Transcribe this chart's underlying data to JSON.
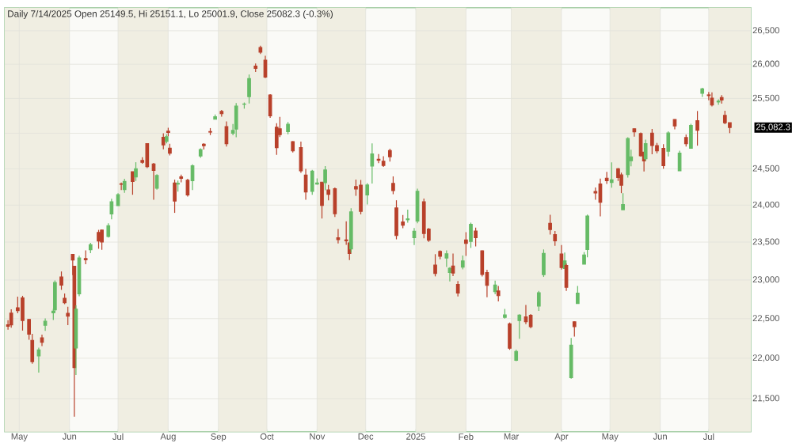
{
  "chart_data": {
    "type": "candlestick",
    "title": "Daily 7/14/2025 Open 25149.5, Hi 25151.1, Lo 25001.9, Close 25082.3 (-0.3%)",
    "log": true,
    "grid": true,
    "xlim": [
      "2024-04-22",
      "2025-07-27"
    ],
    "xticks": [
      {
        "value": "2024-05-01",
        "label": "May"
      },
      {
        "value": "2024-06-01",
        "label": "Jun"
      },
      {
        "value": "2024-07-01",
        "label": "Jul"
      },
      {
        "value": "2024-08-01",
        "label": "Aug"
      },
      {
        "value": "2024-09-01",
        "label": "Sep"
      },
      {
        "value": "2024-10-01",
        "label": "Oct"
      },
      {
        "value": "2024-11-01",
        "label": "Nov"
      },
      {
        "value": "2024-12-01",
        "label": "Dec"
      },
      {
        "value": "2025-01-01",
        "label": "2025"
      },
      {
        "value": "2025-02-01",
        "label": "Feb"
      },
      {
        "value": "2025-03-01",
        "label": "Mar"
      },
      {
        "value": "2025-04-01",
        "label": "Apr"
      },
      {
        "value": "2025-05-01",
        "label": "May"
      },
      {
        "value": "2025-06-01",
        "label": "Jun"
      },
      {
        "value": "2025-07-01",
        "label": "Jul"
      }
    ],
    "ylim": [
      21100,
      26850
    ],
    "yticks": [
      {
        "value": 21500,
        "label": "21,500"
      },
      {
        "value": 22000,
        "label": "22,000"
      },
      {
        "value": 22500,
        "label": "22,500"
      },
      {
        "value": 23000,
        "label": "23,000"
      },
      {
        "value": 23500,
        "label": "23,500"
      },
      {
        "value": 24000,
        "label": "24,000"
      },
      {
        "value": 24500,
        "label": "24,500"
      },
      {
        "value": 25000,
        "label": null
      },
      {
        "value": 25500,
        "label": "25,500"
      },
      {
        "value": 26000,
        "label": "26,000"
      },
      {
        "value": 26500,
        "label": "26,500"
      }
    ],
    "bands": [
      {
        "axis": "x",
        "from": "2024-04-22",
        "to": "2024-06-01",
        "color": "#f0eee2"
      },
      {
        "axis": "x",
        "from": "2024-07-01",
        "to": "2024-08-01",
        "color": "#f0eee2"
      },
      {
        "axis": "x",
        "from": "2024-09-01",
        "to": "2024-10-01",
        "color": "#f0eee2"
      },
      {
        "axis": "x",
        "from": "2024-11-01",
        "to": "2024-12-01",
        "color": "#f0eee2"
      },
      {
        "axis": "x",
        "from": "2025-01-01",
        "to": "2025-02-01",
        "color": "#f0eee2"
      },
      {
        "axis": "x",
        "from": "2025-03-01",
        "to": "2025-04-01",
        "color": "#f0eee2"
      },
      {
        "axis": "x",
        "from": "2025-05-01",
        "to": "2025-06-01",
        "color": "#f0eee2"
      },
      {
        "axis": "x",
        "from": "2025-07-01",
        "to": "2025-07-27",
        "color": "#f0eee2"
      }
    ],
    "annotations": [
      "25,082.3"
    ],
    "x": [
      "2024-04-24",
      "2024-04-26",
      "2024-04-30",
      "2024-05-03",
      "2024-05-07",
      "2024-05-09",
      "2024-05-13",
      "2024-05-15",
      "2024-05-17",
      "2024-05-22",
      "2024-05-23",
      "2024-05-27",
      "2024-05-29",
      "2024-05-31",
      "2024-06-03",
      "2024-06-04",
      "2024-06-05",
      "2024-06-07",
      "2024-06-11",
      "2024-06-14",
      "2024-06-19",
      "2024-06-21",
      "2024-06-25",
      "2024-06-27",
      "2024-07-01",
      "2024-07-03",
      "2024-07-05",
      "2024-07-10",
      "2024-07-12",
      "2024-07-16",
      "2024-07-19",
      "2024-07-23",
      "2024-07-25",
      "2024-07-29",
      "2024-07-31",
      "2024-08-01",
      "2024-08-02",
      "2024-08-05",
      "2024-08-07",
      "2024-08-09",
      "2024-08-13",
      "2024-08-16",
      "2024-08-21",
      "2024-08-23",
      "2024-08-27",
      "2024-08-30",
      "2024-09-03",
      "2024-09-06",
      "2024-09-10",
      "2024-09-12",
      "2024-09-17",
      "2024-09-20",
      "2024-09-24",
      "2024-09-27",
      "2024-09-30",
      "2024-10-03",
      "2024-10-07",
      "2024-10-09",
      "2024-10-14",
      "2024-10-17",
      "2024-10-22",
      "2024-10-25",
      "2024-10-29",
      "2024-11-01",
      "2024-11-04",
      "2024-11-06",
      "2024-11-08",
      "2024-11-12",
      "2024-11-14",
      "2024-11-19",
      "2024-11-21",
      "2024-11-22",
      "2024-11-25",
      "2024-11-28",
      "2024-12-02",
      "2024-12-05",
      "2024-12-09",
      "2024-12-12",
      "2024-12-16",
      "2024-12-18",
      "2024-12-20",
      "2024-12-24",
      "2024-12-27",
      "2024-12-31",
      "2025-01-02",
      "2025-01-06",
      "2025-01-09",
      "2025-01-13",
      "2025-01-16",
      "2025-01-20",
      "2025-01-22",
      "2025-01-24",
      "2025-01-27",
      "2025-01-30",
      "2025-02-01",
      "2025-02-04",
      "2025-02-07",
      "2025-02-11",
      "2025-02-14",
      "2025-02-19",
      "2025-02-21",
      "2025-02-25",
      "2025-02-28",
      "2025-03-04",
      "2025-03-06",
      "2025-03-10",
      "2025-03-13",
      "2025-03-18",
      "2025-03-21",
      "2025-03-25",
      "2025-03-28",
      "2025-04-01",
      "2025-04-03",
      "2025-04-04",
      "2025-04-07",
      "2025-04-09",
      "2025-04-11",
      "2025-04-15",
      "2025-04-17",
      "2025-04-22",
      "2025-04-25",
      "2025-04-29",
      "2025-05-02",
      "2025-05-06",
      "2025-05-08",
      "2025-05-09",
      "2025-05-12",
      "2025-05-14",
      "2025-05-16",
      "2025-05-20",
      "2025-05-22",
      "2025-05-23",
      "2025-05-27",
      "2025-05-30",
      "2025-06-03",
      "2025-06-06",
      "2025-06-10",
      "2025-06-13",
      "2025-06-17",
      "2025-06-20",
      "2025-06-24",
      "2025-06-27",
      "2025-07-01",
      "2025-07-03",
      "2025-07-07",
      "2025-07-09",
      "2025-07-11",
      "2025-07-14"
    ],
    "ohlc": [
      [
        22420,
        22480,
        22360,
        22402
      ],
      [
        22570,
        22620,
        22385,
        22420
      ],
      [
        22640,
        22783,
        22568,
        22604
      ],
      [
        22766,
        22794,
        22348,
        22476
      ],
      [
        22489,
        22499,
        22232,
        22302
      ],
      [
        22224,
        22307,
        21932,
        21957
      ],
      [
        22027,
        22131,
        21821,
        22104
      ],
      [
        22255,
        22297,
        22151,
        22200
      ],
      [
        22415,
        22502,
        22345,
        22466
      ],
      [
        22576,
        22629,
        22483,
        22597
      ],
      [
        22614,
        22993,
        22577,
        22967
      ],
      [
        23038,
        23111,
        22871,
        22932
      ],
      [
        22762,
        22825,
        22685,
        22705
      ],
      [
        22568,
        22653,
        22418,
        22531
      ],
      [
        23337,
        23338,
        23063,
        23263
      ],
      [
        23179,
        23179,
        21281,
        21884
      ],
      [
        22128,
        22670,
        21791,
        22620
      ],
      [
        22821,
        23320,
        22789,
        23290
      ],
      [
        23283,
        23389,
        23206,
        23265
      ],
      [
        23399,
        23490,
        23354,
        23466
      ],
      [
        23629,
        23664,
        23412,
        23516
      ],
      [
        23661,
        23667,
        23398,
        23501
      ],
      [
        23577,
        23754,
        23562,
        23721
      ],
      [
        23881,
        24087,
        23805,
        24044
      ],
      [
        23992,
        24164,
        23992,
        24141
      ],
      [
        24291,
        24309,
        24207,
        24286
      ],
      [
        24213,
        24363,
        24168,
        24324
      ],
      [
        24459,
        24461,
        24141,
        24324
      ],
      [
        24388,
        24592,
        24331,
        24502
      ],
      [
        24615,
        24661,
        24572,
        24590
      ],
      [
        24853,
        24855,
        24510,
        24531
      ],
      [
        24568,
        24582,
        24074,
        24479
      ],
      [
        24231,
        24426,
        24211,
        24406
      ],
      [
        24943,
        24999,
        24774,
        24837
      ],
      [
        24886,
        24984,
        24856,
        24951
      ],
      [
        25030,
        25078,
        24956,
        25011
      ],
      [
        24789,
        24851,
        24687,
        24718
      ],
      [
        24303,
        24350,
        23894,
        24056
      ],
      [
        24289,
        24337,
        24184,
        24297
      ],
      [
        24387,
        24419,
        24311,
        24368
      ],
      [
        24342,
        24360,
        24116,
        24139
      ],
      [
        24335,
        24563,
        24205,
        24541
      ],
      [
        24680,
        24787,
        24654,
        24770
      ],
      [
        24845,
        24858,
        24771,
        24823
      ],
      [
        25024,
        25074,
        24974,
        25017
      ],
      [
        25200,
        25269,
        25200,
        25236
      ],
      [
        25313,
        25334,
        25236,
        25280
      ],
      [
        25094,
        25169,
        24812,
        24852
      ],
      [
        25001,
        25131,
        24971,
        25041
      ],
      [
        25060,
        25433,
        24942,
        25389
      ],
      [
        25416,
        25441,
        25352,
        25419
      ],
      [
        25526,
        25849,
        25426,
        25791
      ],
      [
        25973,
        26012,
        25887,
        25940
      ],
      [
        26249,
        26277,
        26152,
        26179
      ],
      [
        26060,
        26126,
        25795,
        25811
      ],
      [
        25550,
        25564,
        25221,
        25251
      ],
      [
        25085,
        25143,
        24694,
        24796
      ],
      [
        25065,
        25235,
        24947,
        24982
      ],
      [
        25023,
        25160,
        24986,
        25128
      ],
      [
        24882,
        24888,
        24729,
        24750
      ],
      [
        24798,
        24882,
        24445,
        24472
      ],
      [
        24413,
        24498,
        24074,
        24181
      ],
      [
        24189,
        24485,
        24140,
        24467
      ],
      [
        24290,
        24368,
        24280,
        24304
      ],
      [
        24315,
        24317,
        23817,
        23995
      ],
      [
        24308,
        24537,
        24204,
        24484
      ],
      [
        24207,
        24276,
        24066,
        24148
      ],
      [
        24225,
        24242,
        23839,
        23883
      ],
      [
        23559,
        23675,
        23484,
        23533
      ],
      [
        23529,
        23780,
        23464,
        23518
      ],
      [
        23488,
        23507,
        23263,
        23349
      ],
      [
        23411,
        23956,
        23360,
        23907
      ],
      [
        24254,
        24351,
        24126,
        24222
      ],
      [
        24274,
        24345,
        23874,
        23914
      ],
      [
        24140,
        24301,
        24008,
        24276
      ],
      [
        24539,
        24857,
        24296,
        24708
      ],
      [
        24633,
        24706,
        24580,
        24620
      ],
      [
        24604,
        24675,
        24527,
        24548
      ],
      [
        24754,
        24781,
        24601,
        24668
      ],
      [
        24297,
        24395,
        24149,
        24199
      ],
      [
        23961,
        24066,
        23537,
        23588
      ],
      [
        23769,
        23867,
        23685,
        23727
      ],
      [
        23801,
        23939,
        23762,
        23813
      ],
      [
        23561,
        23690,
        23460,
        23645
      ],
      [
        23784,
        24226,
        23752,
        24189
      ],
      [
        24045,
        24089,
        23551,
        23616
      ],
      [
        23674,
        23690,
        23503,
        23527
      ],
      [
        23195,
        23340,
        23047,
        23086
      ],
      [
        23377,
        23391,
        23272,
        23312
      ],
      [
        23290,
        23391,
        23170,
        23345
      ],
      [
        23099,
        23169,
        22981,
        23155
      ],
      [
        23183,
        23347,
        23050,
        23092
      ],
      [
        22940,
        22986,
        22786,
        22829
      ],
      [
        23169,
        23322,
        23139,
        23250
      ],
      [
        23528,
        23633,
        23318,
        23482
      ],
      [
        23509,
        23762,
        23423,
        23739
      ],
      [
        23649,
        23694,
        23443,
        23560
      ],
      [
        23383,
        23391,
        23046,
        23072
      ],
      [
        23096,
        23133,
        22775,
        22929
      ],
      [
        22847,
        22992,
        22814,
        22933
      ],
      [
        22857,
        22922,
        22721,
        22796
      ],
      [
        22516,
        22625,
        22500,
        22547
      ],
      [
        22433,
        22450,
        22105,
        22125
      ],
      [
        21975,
        22106,
        21964,
        22083
      ],
      [
        22476,
        22556,
        22245,
        22545
      ],
      [
        22522,
        22676,
        22429,
        22461
      ],
      [
        22541,
        22558,
        22378,
        22397
      ],
      [
        22662,
        22857,
        22599,
        22834
      ],
      [
        23069,
        23403,
        23040,
        23350
      ],
      [
        23751,
        23869,
        23601,
        23669
      ],
      [
        23600,
        23649,
        23451,
        23519
      ],
      [
        23341,
        23460,
        23137,
        23165
      ],
      [
        23150,
        23360,
        23146,
        23250
      ],
      [
        23190,
        23214,
        22857,
        22904
      ],
      [
        21758,
        22254,
        21744,
        22162
      ],
      [
        22460,
        22468,
        22271,
        22399
      ],
      [
        22695,
        22923,
        22695,
        22829
      ],
      [
        23208,
        23368,
        23207,
        23329
      ],
      [
        23401,
        23872,
        23298,
        23852
      ],
      [
        24185,
        24242,
        24073,
        24167
      ],
      [
        24289,
        24365,
        23847,
        24039
      ],
      [
        24370,
        24457,
        24290,
        24336
      ],
      [
        24311,
        24589,
        24238,
        24347
      ],
      [
        24500,
        24510,
        24331,
        24380
      ],
      [
        24414,
        24447,
        24164,
        24273
      ],
      [
        23936,
        24164,
        23936,
        24008
      ],
      [
        24420,
        24944,
        24378,
        24925
      ],
      [
        24613,
        24767,
        24535,
        24667
      ],
      [
        25064,
        25071,
        24953,
        25020
      ],
      [
        24996,
        25010,
        24669,
        24683
      ],
      [
        24733,
        24737,
        24462,
        24610
      ],
      [
        24640,
        24909,
        24614,
        24853
      ],
      [
        25001,
        25062,
        24704,
        24826
      ],
      [
        24825,
        24864,
        24717,
        24751
      ],
      [
        24786,
        24846,
        24502,
        24543
      ],
      [
        24748,
        25029,
        24672,
        25003
      ],
      [
        25196,
        25199,
        25055,
        25104
      ],
      [
        24473,
        24754,
        24473,
        24719
      ],
      [
        24939,
        24983,
        24813,
        24853
      ],
      [
        24788,
        25136,
        24783,
        25112
      ],
      [
        25179,
        25318,
        24825,
        25044
      ],
      [
        25576,
        25654,
        25523,
        25637
      ],
      [
        25551,
        25594,
        25473,
        25542
      ],
      [
        25505,
        25587,
        25384,
        25405
      ],
      [
        25450,
        25489,
        25407,
        25461
      ],
      [
        25514,
        25548,
        25425,
        25476
      ],
      [
        25256,
        25323,
        25129,
        25150
      ],
      [
        25149.5,
        25151.1,
        25001.9,
        25082.3
      ]
    ],
    "colors": [
      "#b8402a",
      "#b8402a",
      "#b8402a",
      "#b8402a",
      "#b8402a",
      "#b8402a",
      "#66bb66",
      "#b8402a",
      "#66bb66",
      "#66bb66",
      "#66bb66",
      "#b8402a",
      "#b8402a",
      "#b8402a",
      "#b8402a",
      "#b8402a",
      "#66bb66",
      "#66bb66",
      "#b8402a",
      "#66bb66",
      "#b8402a",
      "#b8402a",
      "#66bb66",
      "#66bb66",
      "#66bb66",
      "#b8402a",
      "#66bb66",
      "#b8402a",
      "#66bb66",
      "#b8402a",
      "#b8402a",
      "#b8402a",
      "#66bb66",
      "#b8402a",
      "#66bb66",
      "#b8402a",
      "#b8402a",
      "#b8402a",
      "#66bb66",
      "#b8402a",
      "#b8402a",
      "#66bb66",
      "#66bb66",
      "#b8402a",
      "#b8402a",
      "#66bb66",
      "#b8402a",
      "#b8402a",
      "#66bb66",
      "#66bb66",
      "#66bb66",
      "#66bb66",
      "#b8402a",
      "#b8402a",
      "#b8402a",
      "#b8402a",
      "#b8402a",
      "#b8402a",
      "#66bb66",
      "#b8402a",
      "#b8402a",
      "#b8402a",
      "#66bb66",
      "#66bb66",
      "#b8402a",
      "#66bb66",
      "#b8402a",
      "#b8402a",
      "#b8402a",
      "#b8402a",
      "#b8402a",
      "#66bb66",
      "#b8402a",
      "#b8402a",
      "#66bb66",
      "#66bb66",
      "#b8402a",
      "#b8402a",
      "#b8402a",
      "#b8402a",
      "#b8402a",
      "#b8402a",
      "#66bb66",
      "#66bb66",
      "#66bb66",
      "#b8402a",
      "#b8402a",
      "#b8402a",
      "#b8402a",
      "#66bb66",
      "#66bb66",
      "#b8402a",
      "#b8402a",
      "#66bb66",
      "#b8402a",
      "#66bb66",
      "#b8402a",
      "#b8402a",
      "#b8402a",
      "#66bb66",
      "#b8402a",
      "#66bb66",
      "#b8402a",
      "#66bb66",
      "#66bb66",
      "#b8402a",
      "#b8402a",
      "#66bb66",
      "#66bb66",
      "#b8402a",
      "#b8402a",
      "#b8402a",
      "#66bb66",
      "#b8402a",
      "#66bb66",
      "#b8402a",
      "#66bb66",
      "#66bb66",
      "#66bb66",
      "#b8402a",
      "#b8402a",
      "#b8402a",
      "#66bb66",
      "#b8402a",
      "#b8402a",
      "#66bb66",
      "#66bb66",
      "#66bb66",
      "#b8402a",
      "#b8402a",
      "#b8402a",
      "#66bb66",
      "#b8402a",
      "#b8402a",
      "#b8402a",
      "#66bb66",
      "#b8402a",
      "#66bb66",
      "#b8402a",
      "#66bb66",
      "#b8402a",
      "#66bb66",
      "#b8402a",
      "#b8402a",
      "#66bb66",
      "#b8402a",
      "#b8402a",
      "#b8402a"
    ]
  }
}
